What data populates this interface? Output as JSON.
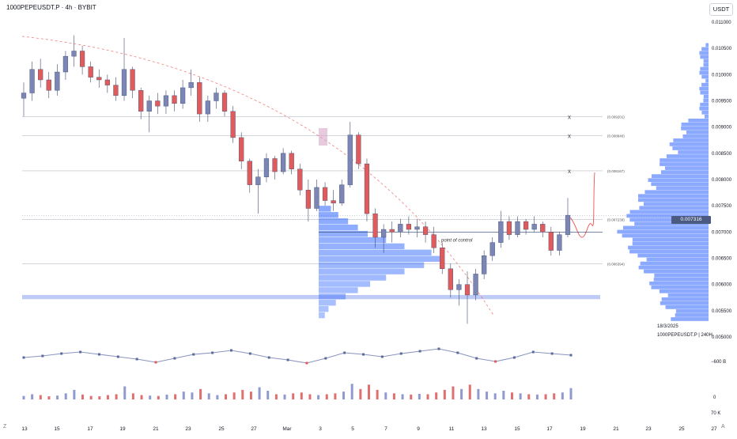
{
  "header": {
    "symbol_line": "1000PEPEUSDT.P · 4h · BYBIT",
    "currency": "USDT"
  },
  "current_price": "0.007316",
  "side_info": {
    "date": "18/3/2025",
    "symbol_line": "1000PEPEUSDT.P | 240H"
  },
  "indicator_axis": {
    "oscillator_label": "−600 B",
    "volume_zero": "0",
    "volume_top": "70 K"
  },
  "corner_labels": {
    "z": "Z",
    "a": "A"
  },
  "annotations": {
    "poc": "point of control"
  },
  "colors": {
    "up": "#7b86b5",
    "down": "#e05c5c",
    "profile": "#2962ff",
    "accent_line": "#ef5350",
    "grid": "#b8bcc6",
    "support_zone": "#b3c2f2"
  },
  "chart_data": {
    "type": "candlestick",
    "y_range": [
      0.005,
      0.011
    ],
    "y_ticks": [
      "0.011000",
      "0.010500",
      "0.010000",
      "0.009500",
      "0.009000",
      "0.008500",
      "0.008000",
      "0.007500",
      "0.007000",
      "0.006500",
      "0.006000",
      "0.005500",
      "0.005000"
    ],
    "x_ticks": [
      "13",
      "15",
      "17",
      "19",
      "21",
      "23",
      "25",
      "27",
      "Mar",
      "3",
      "5",
      "7",
      "9",
      "11",
      "13",
      "15",
      "17",
      "19",
      "21",
      "23",
      "25",
      "27"
    ],
    "price_levels": [
      {
        "value": 0.009201,
        "label": "(0.009201)"
      },
      {
        "value": 0.00884,
        "label": "(0.008840)"
      },
      {
        "value": 0.008167,
        "label": "(0.008167)"
      },
      {
        "value": 0.007239,
        "label": "(0.007239)"
      },
      {
        "value": 0.006394,
        "label": "(0.006394)"
      }
    ],
    "target_marks": [
      "x",
      "x",
      "x"
    ],
    "support_zone": [
      0.00572,
      0.0058
    ],
    "point_of_control": 0.007,
    "current_price": 0.007316,
    "candles": [
      {
        "o": 0.00955,
        "h": 0.00985,
        "l": 0.0092,
        "c": 0.00965
      },
      {
        "o": 0.00965,
        "h": 0.01025,
        "l": 0.0095,
        "c": 0.0101
      },
      {
        "o": 0.0101,
        "h": 0.0103,
        "l": 0.00975,
        "c": 0.0099
      },
      {
        "o": 0.0099,
        "h": 0.01005,
        "l": 0.00955,
        "c": 0.0097
      },
      {
        "o": 0.0097,
        "h": 0.0102,
        "l": 0.0096,
        "c": 0.01005
      },
      {
        "o": 0.01005,
        "h": 0.01045,
        "l": 0.0099,
        "c": 0.01035
      },
      {
        "o": 0.01035,
        "h": 0.01075,
        "l": 0.01015,
        "c": 0.01045
      },
      {
        "o": 0.01045,
        "h": 0.01055,
        "l": 0.01,
        "c": 0.01015
      },
      {
        "o": 0.01015,
        "h": 0.01025,
        "l": 0.00985,
        "c": 0.00995
      },
      {
        "o": 0.00995,
        "h": 0.0101,
        "l": 0.00975,
        "c": 0.0099
      },
      {
        "o": 0.0099,
        "h": 0.01,
        "l": 0.00965,
        "c": 0.0098
      },
      {
        "o": 0.0098,
        "h": 0.00995,
        "l": 0.0095,
        "c": 0.0096
      },
      {
        "o": 0.0096,
        "h": 0.0107,
        "l": 0.0095,
        "c": 0.0101
      },
      {
        "o": 0.0101,
        "h": 0.01015,
        "l": 0.00955,
        "c": 0.0097
      },
      {
        "o": 0.0097,
        "h": 0.00975,
        "l": 0.00915,
        "c": 0.0093
      },
      {
        "o": 0.0093,
        "h": 0.0096,
        "l": 0.0089,
        "c": 0.0095
      },
      {
        "o": 0.0095,
        "h": 0.00965,
        "l": 0.00925,
        "c": 0.0094
      },
      {
        "o": 0.0094,
        "h": 0.0097,
        "l": 0.00925,
        "c": 0.0096
      },
      {
        "o": 0.0096,
        "h": 0.0097,
        "l": 0.0093,
        "c": 0.00945
      },
      {
        "o": 0.00945,
        "h": 0.0099,
        "l": 0.00935,
        "c": 0.00975
      },
      {
        "o": 0.00975,
        "h": 0.0101,
        "l": 0.0096,
        "c": 0.00985
      },
      {
        "o": 0.00985,
        "h": 0.00995,
        "l": 0.0091,
        "c": 0.00925
      },
      {
        "o": 0.00925,
        "h": 0.0096,
        "l": 0.0091,
        "c": 0.0095
      },
      {
        "o": 0.0095,
        "h": 0.00975,
        "l": 0.00935,
        "c": 0.00965
      },
      {
        "o": 0.00965,
        "h": 0.0097,
        "l": 0.0092,
        "c": 0.0093
      },
      {
        "o": 0.0093,
        "h": 0.0094,
        "l": 0.0087,
        "c": 0.0088
      },
      {
        "o": 0.0088,
        "h": 0.0089,
        "l": 0.0082,
        "c": 0.00835
      },
      {
        "o": 0.00835,
        "h": 0.0084,
        "l": 0.00775,
        "c": 0.0079
      },
      {
        "o": 0.0079,
        "h": 0.0082,
        "l": 0.00735,
        "c": 0.00805
      },
      {
        "o": 0.00805,
        "h": 0.0085,
        "l": 0.00795,
        "c": 0.0084
      },
      {
        "o": 0.0084,
        "h": 0.00845,
        "l": 0.008,
        "c": 0.00815
      },
      {
        "o": 0.00815,
        "h": 0.0086,
        "l": 0.0081,
        "c": 0.0085
      },
      {
        "o": 0.0085,
        "h": 0.00855,
        "l": 0.0081,
        "c": 0.0082
      },
      {
        "o": 0.0082,
        "h": 0.0083,
        "l": 0.0077,
        "c": 0.0078
      },
      {
        "o": 0.0078,
        "h": 0.008,
        "l": 0.0072,
        "c": 0.00745
      },
      {
        "o": 0.00745,
        "h": 0.008,
        "l": 0.0074,
        "c": 0.00785
      },
      {
        "o": 0.00785,
        "h": 0.00795,
        "l": 0.0075,
        "c": 0.0076
      },
      {
        "o": 0.0076,
        "h": 0.0078,
        "l": 0.0074,
        "c": 0.00755
      },
      {
        "o": 0.00755,
        "h": 0.008,
        "l": 0.0075,
        "c": 0.0079
      },
      {
        "o": 0.0079,
        "h": 0.0091,
        "l": 0.00785,
        "c": 0.00885
      },
      {
        "o": 0.00885,
        "h": 0.0089,
        "l": 0.0082,
        "c": 0.0083
      },
      {
        "o": 0.0083,
        "h": 0.0084,
        "l": 0.0072,
        "c": 0.00735
      },
      {
        "o": 0.00735,
        "h": 0.00745,
        "l": 0.0067,
        "c": 0.0069
      },
      {
        "o": 0.0069,
        "h": 0.00715,
        "l": 0.0066,
        "c": 0.00705
      },
      {
        "o": 0.00705,
        "h": 0.0072,
        "l": 0.0068,
        "c": 0.007
      },
      {
        "o": 0.007,
        "h": 0.00725,
        "l": 0.0069,
        "c": 0.00715
      },
      {
        "o": 0.00715,
        "h": 0.0073,
        "l": 0.00695,
        "c": 0.00705
      },
      {
        "o": 0.00705,
        "h": 0.00725,
        "l": 0.0069,
        "c": 0.0071
      },
      {
        "o": 0.0071,
        "h": 0.0072,
        "l": 0.0068,
        "c": 0.00695
      },
      {
        "o": 0.00695,
        "h": 0.0071,
        "l": 0.0066,
        "c": 0.0067
      },
      {
        "o": 0.0067,
        "h": 0.0068,
        "l": 0.0062,
        "c": 0.0063
      },
      {
        "o": 0.0063,
        "h": 0.0064,
        "l": 0.00575,
        "c": 0.0059
      },
      {
        "o": 0.0059,
        "h": 0.0061,
        "l": 0.0056,
        "c": 0.006
      },
      {
        "o": 0.006,
        "h": 0.00625,
        "l": 0.00525,
        "c": 0.0058
      },
      {
        "o": 0.0058,
        "h": 0.0063,
        "l": 0.0057,
        "c": 0.0062
      },
      {
        "o": 0.0062,
        "h": 0.00665,
        "l": 0.0061,
        "c": 0.00655
      },
      {
        "o": 0.00655,
        "h": 0.0069,
        "l": 0.00645,
        "c": 0.0068
      },
      {
        "o": 0.0068,
        "h": 0.0074,
        "l": 0.0067,
        "c": 0.0072
      },
      {
        "o": 0.0072,
        "h": 0.0073,
        "l": 0.00685,
        "c": 0.00695
      },
      {
        "o": 0.00695,
        "h": 0.0073,
        "l": 0.0069,
        "c": 0.0072
      },
      {
        "o": 0.0072,
        "h": 0.00725,
        "l": 0.00695,
        "c": 0.00705
      },
      {
        "o": 0.00705,
        "h": 0.0073,
        "l": 0.007,
        "c": 0.00715
      },
      {
        "o": 0.00715,
        "h": 0.0072,
        "l": 0.0069,
        "c": 0.007
      },
      {
        "o": 0.007,
        "h": 0.0071,
        "l": 0.00655,
        "c": 0.00665
      },
      {
        "o": 0.00665,
        "h": 0.007,
        "l": 0.00655,
        "c": 0.00695
      },
      {
        "o": 0.00695,
        "h": 0.00765,
        "l": 0.0069,
        "c": 0.00732
      }
    ],
    "volume_profile": [
      0.1,
      0.16,
      0.24,
      0.32,
      0.4,
      0.55,
      0.7,
      0.92,
      1.0,
      0.86,
      0.7,
      0.55,
      0.42,
      0.32,
      0.22,
      0.14,
      0.08,
      0.05
    ],
    "oscillator": [
      -0.3,
      -0.1,
      0.2,
      0.4,
      0.1,
      -0.2,
      -0.5,
      -0.9,
      -0.4,
      0.1,
      0.3,
      0.6,
      0.2,
      -0.3,
      -0.6,
      -1.0,
      -0.4,
      0.3,
      0.1,
      -0.2,
      0.2,
      0.5,
      0.8,
      0.3,
      -0.4,
      -0.8,
      -0.3,
      0.4,
      0.2,
      0.0
    ],
    "volume": [
      0.2,
      0.3,
      0.25,
      0.18,
      0.22,
      0.35,
      0.55,
      0.28,
      0.2,
      0.18,
      0.25,
      0.3,
      0.75,
      0.35,
      0.25,
      0.22,
      0.2,
      0.28,
      0.3,
      0.45,
      0.4,
      0.6,
      0.35,
      0.25,
      0.3,
      0.4,
      0.55,
      0.45,
      0.7,
      0.5,
      0.3,
      0.28,
      0.35,
      0.4,
      0.3,
      0.25,
      0.3,
      0.35,
      0.45,
      0.9,
      0.6,
      0.85,
      0.55,
      0.4,
      0.35,
      0.3,
      0.28,
      0.32,
      0.3,
      0.4,
      0.55,
      0.75,
      0.6,
      0.85,
      0.6,
      0.45,
      0.35,
      0.5,
      0.4,
      0.35,
      0.3,
      0.28,
      0.3,
      0.35,
      0.4,
      0.65
    ]
  }
}
